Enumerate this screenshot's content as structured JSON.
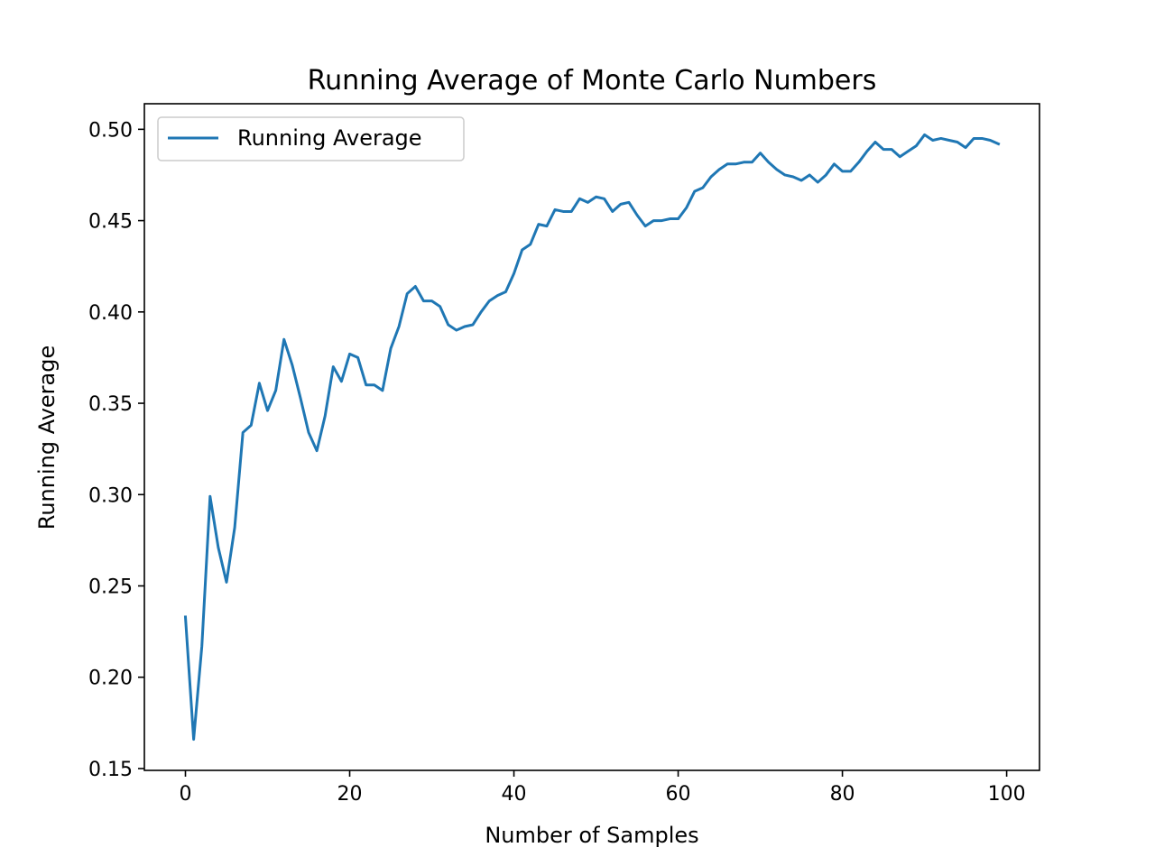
{
  "chart_data": {
    "type": "line",
    "title": "Running Average of Monte Carlo Numbers",
    "xlabel": "Number of Samples",
    "ylabel": "Running Average",
    "xlim": [
      -5,
      104
    ],
    "ylim": [
      0.149,
      0.514
    ],
    "xticks": [
      0,
      20,
      40,
      60,
      80,
      100
    ],
    "yticks": [
      0.15,
      0.2,
      0.25,
      0.3,
      0.35,
      0.4,
      0.45,
      0.5
    ],
    "xtick_labels": [
      "0",
      "20",
      "40",
      "60",
      "80",
      "100"
    ],
    "ytick_labels": [
      "0.15",
      "0.20",
      "0.25",
      "0.30",
      "0.35",
      "0.40",
      "0.45",
      "0.50"
    ],
    "grid": false,
    "legend": {
      "position": "upper-left",
      "entries": [
        "Running Average"
      ]
    },
    "series": [
      {
        "name": "Running Average",
        "color": "#1f77b4",
        "x": [
          0,
          1,
          2,
          3,
          4,
          5,
          6,
          7,
          8,
          9,
          10,
          11,
          12,
          13,
          14,
          15,
          16,
          17,
          18,
          19,
          20,
          21,
          22,
          23,
          24,
          25,
          26,
          27,
          28,
          29,
          30,
          31,
          32,
          33,
          34,
          35,
          36,
          37,
          38,
          39,
          40,
          41,
          42,
          43,
          44,
          45,
          46,
          47,
          48,
          49,
          50,
          51,
          52,
          53,
          54,
          55,
          56,
          57,
          58,
          59,
          60,
          61,
          62,
          63,
          64,
          65,
          66,
          67,
          68,
          69,
          70,
          71,
          72,
          73,
          74,
          75,
          76,
          77,
          78,
          79,
          80,
          81,
          82,
          83,
          84,
          85,
          86,
          87,
          88,
          89,
          90,
          91,
          92,
          93,
          94,
          95,
          96,
          97,
          98,
          99
        ],
        "values": [
          0.233,
          0.166,
          0.217,
          0.299,
          0.271,
          0.252,
          0.282,
          0.334,
          0.338,
          0.361,
          0.346,
          0.357,
          0.385,
          0.371,
          0.353,
          0.334,
          0.324,
          0.343,
          0.37,
          0.362,
          0.377,
          0.375,
          0.36,
          0.36,
          0.357,
          0.38,
          0.392,
          0.41,
          0.414,
          0.406,
          0.406,
          0.403,
          0.393,
          0.39,
          0.392,
          0.393,
          0.4,
          0.406,
          0.409,
          0.411,
          0.421,
          0.434,
          0.437,
          0.448,
          0.447,
          0.456,
          0.455,
          0.455,
          0.462,
          0.46,
          0.463,
          0.462,
          0.455,
          0.459,
          0.46,
          0.453,
          0.447,
          0.45,
          0.45,
          0.451,
          0.451,
          0.457,
          0.466,
          0.468,
          0.474,
          0.478,
          0.481,
          0.481,
          0.482,
          0.482,
          0.487,
          0.482,
          0.478,
          0.475,
          0.474,
          0.472,
          0.475,
          0.471,
          0.475,
          0.481,
          0.477,
          0.477,
          0.482,
          0.488,
          0.493,
          0.489,
          0.489,
          0.485,
          0.488,
          0.491,
          0.497,
          0.494,
          0.495,
          0.494,
          0.493,
          0.49,
          0.495,
          0.495,
          0.494,
          0.492
        ]
      }
    ]
  }
}
